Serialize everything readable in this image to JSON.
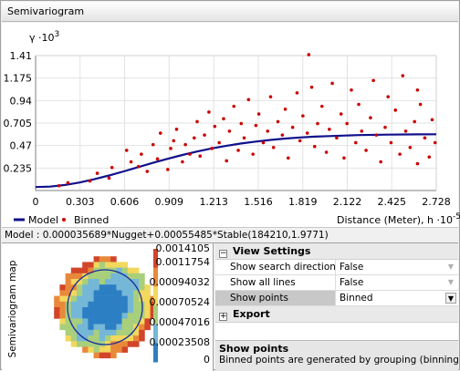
{
  "window": {
    "title": "Semivariogram"
  },
  "chart_data": {
    "type": "scatter",
    "ylabel": "γ ·10",
    "ylabel_exp": "3",
    "xlabel": "Distance (Meter), h ·10",
    "xlabel_exp": "-5",
    "yticks": [
      "0.235",
      "0.47",
      "0.705",
      "0.94",
      "1.175",
      "1.41"
    ],
    "ytick_values": [
      0.235,
      0.47,
      0.705,
      0.94,
      1.175,
      1.41
    ],
    "xticks": [
      "0",
      "0.303",
      "0.606",
      "0.909",
      "1.213",
      "1.516",
      "1.819",
      "2.122",
      "2.425",
      "2.728"
    ],
    "xtick_values": [
      0,
      0.303,
      0.606,
      0.909,
      1.213,
      1.516,
      1.819,
      2.122,
      2.425,
      2.728
    ],
    "xlim": [
      0,
      2.728
    ],
    "ylim": [
      0,
      1.41
    ],
    "grid": true,
    "colors": {
      "model": "#10108c",
      "binned": "#cc0000",
      "grid": "#e2e2e2"
    },
    "model": {
      "nugget": 3.5689e-05,
      "sill": 0.00055485,
      "range": 184210,
      "param": 1.9771
    },
    "series": [
      {
        "name": "Model",
        "type": "line",
        "x": [
          0,
          0.1,
          0.2,
          0.3,
          0.4,
          0.5,
          0.6,
          0.7,
          0.8,
          0.9,
          1.0,
          1.1,
          1.2,
          1.3,
          1.4,
          1.5,
          1.6,
          1.7,
          1.8,
          1.9,
          2.0,
          2.2,
          2.4,
          2.6,
          2.728
        ],
        "y": [
          0.036,
          0.041,
          0.058,
          0.084,
          0.118,
          0.157,
          0.2,
          0.245,
          0.29,
          0.332,
          0.372,
          0.408,
          0.44,
          0.468,
          0.492,
          0.512,
          0.529,
          0.543,
          0.554,
          0.563,
          0.569,
          0.579,
          0.584,
          0.587,
          0.588
        ]
      },
      {
        "name": "Binned",
        "type": "scatter",
        "x": [
          0.16,
          0.22,
          0.37,
          0.42,
          0.5,
          0.52,
          0.62,
          0.65,
          0.7,
          0.72,
          0.76,
          0.8,
          0.83,
          0.85,
          0.9,
          0.92,
          0.94,
          0.96,
          1.0,
          1.02,
          1.05,
          1.08,
          1.1,
          1.12,
          1.15,
          1.18,
          1.2,
          1.22,
          1.25,
          1.28,
          1.3,
          1.32,
          1.35,
          1.38,
          1.4,
          1.42,
          1.45,
          1.48,
          1.5,
          1.52,
          1.55,
          1.58,
          1.6,
          1.62,
          1.65,
          1.68,
          1.7,
          1.72,
          1.75,
          1.78,
          1.8,
          1.82,
          1.85,
          1.88,
          1.9,
          1.92,
          1.95,
          1.98,
          2.0,
          2.02,
          2.05,
          2.08,
          2.1,
          2.12,
          2.15,
          2.18,
          2.2,
          2.22,
          2.25,
          2.28,
          2.3,
          2.32,
          2.35,
          2.38,
          2.4,
          2.42,
          2.45,
          2.48,
          2.5,
          2.52,
          2.55,
          2.58,
          2.6,
          2.62,
          2.65,
          2.68,
          2.7,
          2.72,
          1.86,
          2.6
        ],
        "y": [
          0.05,
          0.08,
          0.1,
          0.18,
          0.13,
          0.24,
          0.42,
          0.3,
          0.25,
          0.38,
          0.2,
          0.48,
          0.33,
          0.6,
          0.22,
          0.44,
          0.52,
          0.64,
          0.3,
          0.48,
          0.38,
          0.55,
          0.72,
          0.36,
          0.58,
          0.82,
          0.44,
          0.67,
          0.5,
          0.75,
          0.31,
          0.62,
          0.88,
          0.42,
          0.7,
          0.55,
          0.95,
          0.38,
          0.68,
          0.8,
          0.5,
          0.62,
          0.98,
          0.45,
          0.72,
          0.58,
          0.85,
          0.34,
          0.66,
          1.02,
          0.52,
          0.78,
          0.6,
          1.08,
          0.46,
          0.7,
          0.88,
          0.4,
          0.64,
          1.12,
          0.55,
          0.8,
          0.34,
          0.7,
          1.05,
          0.5,
          0.9,
          0.62,
          0.42,
          0.76,
          1.15,
          0.58,
          0.3,
          0.66,
          0.98,
          0.5,
          0.84,
          0.38,
          1.2,
          0.62,
          0.45,
          0.72,
          0.28,
          0.9,
          0.55,
          0.35,
          0.74,
          0.5,
          1.42,
          1.05
        ]
      }
    ]
  },
  "legend": {
    "model_label": "Model",
    "binned_label": "Binned"
  },
  "model_text": "Model : 0.000035689*Nugget+0.00055485*Stable(184210,1.9771)",
  "map": {
    "label": "Semivariogram map",
    "scale": [
      "0.0014105",
      "0.0011754",
      "0.00094032",
      "0.00070524",
      "0.00047016",
      "0.00023508",
      "0"
    ],
    "colors": {
      "low": "#2d7fc4",
      "midlow": "#75b7d6",
      "mid": "#a8cf7c",
      "midhigh": "#f2d85c",
      "high": "#e8893a",
      "top": "#d2452a",
      "circle": "#1c2c9c"
    }
  },
  "properties": {
    "view_settings": {
      "label": "View Settings",
      "toggle": "⊟",
      "rows": [
        {
          "name": "Show search direction",
          "value": "False"
        },
        {
          "name": "Show all lines",
          "value": "False"
        },
        {
          "name": "Show points",
          "value": "Binned"
        }
      ]
    },
    "export": {
      "label": "Export",
      "toggle": "⊞"
    },
    "description": {
      "title": "Show points",
      "text": "Binned points are generated by grouping (binning) em..."
    }
  },
  "icons": {
    "dropdown": "chevron-down-icon"
  }
}
